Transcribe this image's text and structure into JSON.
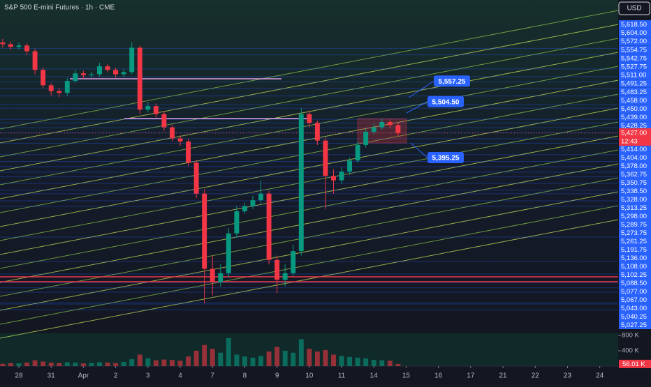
{
  "header": {
    "title": "S&P 500 E-mini Futures · 1h · CME",
    "currency": "USD"
  },
  "chart_data": {
    "type": "candlestick",
    "x": [
      -0.5,
      -0.25,
      0,
      0.25,
      0.5,
      0.75,
      1,
      1.25,
      1.5,
      1.75,
      2,
      2.25,
      2.5,
      2.75,
      3,
      3.25,
      3.5,
      3.75,
      4,
      4.25,
      4.5,
      4.75,
      5,
      5.25,
      5.5,
      5.75,
      6,
      6.25,
      6.5,
      6.75,
      7,
      7.25,
      7.5,
      7.75,
      8,
      8.25,
      8.5,
      8.75,
      9,
      9.25,
      9.5,
      9.75,
      10,
      10.25,
      10.5,
      10.75,
      11,
      11.25,
      11.5,
      11.75
    ],
    "xlim": [
      -0.584,
      18.57
    ],
    "xticks": [
      {
        "value": 0,
        "label": "28"
      },
      {
        "value": 1,
        "label": "31"
      },
      {
        "value": 2,
        "label": "Apr"
      },
      {
        "value": 3,
        "label": "2"
      },
      {
        "value": 4,
        "label": "3"
      },
      {
        "value": 5,
        "label": "4"
      },
      {
        "value": 6,
        "label": "7"
      },
      {
        "value": 7,
        "label": "8"
      },
      {
        "value": 8,
        "label": "9"
      },
      {
        "value": 9,
        "label": "10"
      },
      {
        "value": 10,
        "label": "11"
      },
      {
        "value": 11,
        "label": "14"
      },
      {
        "value": 12,
        "label": "15"
      },
      {
        "value": 13,
        "label": "16"
      },
      {
        "value": 14,
        "label": "17"
      },
      {
        "value": 15,
        "label": "21"
      },
      {
        "value": 16,
        "label": "22"
      },
      {
        "value": 17,
        "label": "23"
      },
      {
        "value": 18,
        "label": "24"
      }
    ],
    "ylim": [
      4974,
      5728
    ],
    "open": [
      5632,
      5628,
      5622,
      5625,
      5612,
      5570,
      5535,
      5522,
      5518,
      5545,
      5562,
      5558,
      5560,
      5578,
      5570,
      5560,
      5565,
      5620,
      5480,
      5488,
      5470,
      5440,
      5415,
      5408,
      5360,
      5290,
      5120,
      5090,
      5110,
      5200,
      5250,
      5262,
      5275,
      5290,
      5140,
      5095,
      5110,
      5160,
      5470,
      5450,
      5410,
      5330,
      5320,
      5340,
      5365,
      5400,
      5430,
      5440,
      5452,
      5445
    ],
    "high": [
      5640,
      5634,
      5632,
      5630,
      5618,
      5576,
      5540,
      5528,
      5552,
      5570,
      5568,
      5566,
      5586,
      5584,
      5575,
      5572,
      5632,
      5625,
      5498,
      5494,
      5476,
      5446,
      5422,
      5414,
      5366,
      5300,
      5150,
      5130,
      5212,
      5262,
      5270,
      5285,
      5320,
      5296,
      5150,
      5130,
      5175,
      5483,
      5478,
      5455,
      5416,
      5345,
      5350,
      5372,
      5408,
      5436,
      5448,
      5460,
      5458,
      5450
    ],
    "low": [
      5620,
      5615,
      5616,
      5604,
      5560,
      5528,
      5512,
      5508,
      5512,
      5540,
      5550,
      5552,
      5555,
      5564,
      5552,
      5554,
      5560,
      5470,
      5474,
      5462,
      5432,
      5408,
      5398,
      5352,
      5280,
      5042,
      5060,
      5080,
      5100,
      5190,
      5244,
      5255,
      5268,
      5130,
      5065,
      5080,
      5104,
      5150,
      5440,
      5400,
      5255,
      5290,
      5312,
      5332,
      5360,
      5394,
      5424,
      5435,
      5438,
      5420
    ],
    "close": [
      5628,
      5622,
      5625,
      5612,
      5570,
      5535,
      5522,
      5518,
      5545,
      5562,
      5558,
      5560,
      5578,
      5570,
      5560,
      5565,
      5620,
      5480,
      5488,
      5470,
      5440,
      5415,
      5408,
      5360,
      5290,
      5120,
      5090,
      5110,
      5200,
      5250,
      5262,
      5275,
      5290,
      5140,
      5095,
      5110,
      5160,
      5470,
      5450,
      5410,
      5330,
      5320,
      5340,
      5365,
      5400,
      5430,
      5440,
      5452,
      5445,
      5427
    ],
    "up_color": "#089981",
    "down_color": "#f23645",
    "price_levels": [
      {
        "value": 5618.5,
        "label": "5,618.50"
      },
      {
        "value": 5604,
        "label": "5,604.00"
      },
      {
        "value": 5572,
        "label": "5,572.00"
      },
      {
        "value": 5554.75,
        "label": "5,554.75"
      },
      {
        "value": 5542.75,
        "label": "5,542.75"
      },
      {
        "value": 5527.75,
        "label": "5,527.75"
      },
      {
        "value": 5511,
        "label": "5,511.00"
      },
      {
        "value": 5491.25,
        "label": "5,491.25"
      },
      {
        "value": 5483.25,
        "label": "5,483.25"
      },
      {
        "value": 5458,
        "label": "5,458.00"
      },
      {
        "value": 5450,
        "label": "5,450.00"
      },
      {
        "value": 5439,
        "label": "5,439.00"
      },
      {
        "value": 5428.25,
        "label": "5,428.25"
      },
      {
        "value": 5414,
        "label": "5,414.00"
      },
      {
        "value": 5404,
        "label": "5,404.00"
      },
      {
        "value": 5378,
        "label": "5,378.00"
      },
      {
        "value": 5362.75,
        "label": "5,362.75"
      },
      {
        "value": 5350.75,
        "label": "5,350.75"
      },
      {
        "value": 5338.5,
        "label": "5,338.50"
      },
      {
        "value": 5328,
        "label": "5,328.00"
      },
      {
        "value": 5313.25,
        "label": "5,313.25"
      },
      {
        "value": 5298,
        "label": "5,298.00"
      },
      {
        "value": 5289.75,
        "label": "5,289.75"
      },
      {
        "value": 5273.75,
        "label": "5,273.75"
      },
      {
        "value": 5261.25,
        "label": "5,261.25"
      },
      {
        "value": 5191.75,
        "label": "5,191.75"
      },
      {
        "value": 5136,
        "label": "5,136.00"
      },
      {
        "value": 5108,
        "label": "5,108.00"
      },
      {
        "value": 5102.25,
        "label": "5,102.25"
      },
      {
        "value": 5088.5,
        "label": "5,088.50"
      },
      {
        "value": 5077,
        "label": "5,077.00"
      },
      {
        "value": 5067,
        "label": "5,067.00"
      },
      {
        "value": 5043,
        "label": "5,043.00"
      },
      {
        "value": 5040.25,
        "label": "5,040.25"
      },
      {
        "value": 5027.25,
        "label": "5,027.25"
      }
    ],
    "last_price": {
      "value": 5427,
      "label": "5,427.00"
    },
    "countdown": "12:43",
    "annotations": [
      {
        "value": 5557.25,
        "label": "5,557.25"
      },
      {
        "value": 5504.5,
        "label": "5,504.50"
      },
      {
        "value": 5395.25,
        "label": "5,395.25"
      }
    ],
    "volume": {
      "values": [
        60000,
        80000,
        70000,
        90000,
        150000,
        120000,
        90000,
        80000,
        100000,
        90000,
        70000,
        80000,
        100000,
        90000,
        80000,
        110000,
        180000,
        300000,
        200000,
        150000,
        170000,
        160000,
        140000,
        250000,
        400000,
        550000,
        450000,
        350000,
        730000,
        300000,
        250000,
        220000,
        260000,
        380000,
        500000,
        400000,
        350000,
        700000,
        450000,
        380000,
        420000,
        300000,
        260000,
        240000,
        220000,
        200000,
        160000,
        150000,
        140000,
        56010
      ],
      "ylim": [
        0,
        855000
      ],
      "yticks": [
        {
          "value": 800000,
          "label": "800 K"
        },
        {
          "value": 400000,
          "label": "400 K"
        }
      ],
      "last_volume": {
        "value": 56010,
        "label": "56.01 K"
      }
    }
  }
}
